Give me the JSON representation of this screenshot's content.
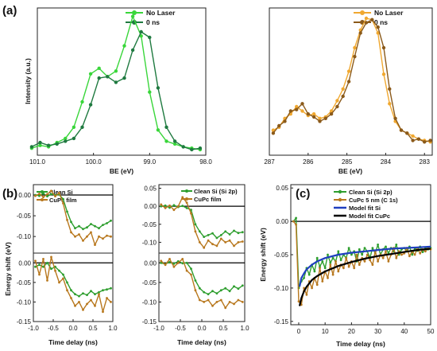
{
  "panel_labels": {
    "a": "(a)",
    "b": "(b)",
    "c": "(c)"
  },
  "colors": {
    "no_laser_si": "#39d63a",
    "zero_ns_si": "#1f7a40",
    "no_laser_c": "#f0a830",
    "zero_ns_c": "#8b5a1a",
    "clean_si": "#2e9e2e",
    "cupc": "#b8781e",
    "fit_si": "#1f3fbf",
    "fit_cupc": "#000000"
  },
  "chart_data": [
    {
      "id": "a-left",
      "type": "line",
      "xlabel": "BE (eV)",
      "ylabel": "Intensity (a.u.)",
      "xlim": [
        101.0,
        98.0
      ],
      "x_reversed": true,
      "xticks": [
        "101.0",
        "100.0",
        "99.0",
        "98.0"
      ],
      "series": [
        {
          "name": "No Laser",
          "x": [
            101.1,
            100.95,
            100.8,
            100.65,
            100.5,
            100.35,
            100.2,
            100.05,
            99.9,
            99.75,
            99.6,
            99.45,
            99.3,
            99.15,
            99.0,
            98.85,
            98.7,
            98.55,
            98.4,
            98.25,
            98.1
          ],
          "y": [
            0.05,
            0.07,
            0.06,
            0.09,
            0.12,
            0.2,
            0.38,
            0.58,
            0.62,
            0.56,
            0.6,
            0.78,
            0.99,
            0.85,
            0.45,
            0.18,
            0.1,
            0.08,
            0.06,
            0.05,
            0.04
          ]
        },
        {
          "name": "0 ns",
          "x": [
            101.1,
            100.95,
            100.8,
            100.65,
            100.5,
            100.35,
            100.2,
            100.05,
            99.9,
            99.75,
            99.6,
            99.45,
            99.3,
            99.15,
            99.0,
            98.85,
            98.7,
            98.55,
            98.4,
            98.25,
            98.1
          ],
          "y": [
            0.06,
            0.09,
            0.07,
            0.08,
            0.1,
            0.12,
            0.2,
            0.36,
            0.55,
            0.56,
            0.52,
            0.55,
            0.75,
            0.88,
            0.84,
            0.48,
            0.2,
            0.1,
            0.06,
            0.04,
            0.05
          ]
        }
      ]
    },
    {
      "id": "a-right",
      "type": "line",
      "xlabel": "BE (eV)",
      "ylabel": "",
      "xlim": [
        287,
        282.8
      ],
      "x_reversed": true,
      "xticks": [
        "287",
        "286",
        "285",
        "284",
        "283"
      ],
      "series": [
        {
          "name": "No Laser",
          "x": [
            286.9,
            286.75,
            286.6,
            286.45,
            286.3,
            286.15,
            286.0,
            285.85,
            285.7,
            285.55,
            285.4,
            285.25,
            285.1,
            284.95,
            284.8,
            284.65,
            284.5,
            284.35,
            284.2,
            284.05,
            283.9,
            283.75,
            283.6,
            283.45,
            283.3,
            283.15,
            283.0,
            282.85
          ],
          "y": [
            0.22,
            0.24,
            0.3,
            0.33,
            0.38,
            0.35,
            0.32,
            0.33,
            0.3,
            0.31,
            0.35,
            0.42,
            0.5,
            0.62,
            0.78,
            0.9,
            0.98,
            0.97,
            0.88,
            0.6,
            0.4,
            0.28,
            0.22,
            0.2,
            0.18,
            0.16,
            0.15,
            0.14
          ]
        },
        {
          "name": "0 ns",
          "x": [
            286.9,
            286.75,
            286.6,
            286.45,
            286.3,
            286.15,
            286.0,
            285.85,
            285.7,
            285.55,
            285.4,
            285.25,
            285.1,
            284.95,
            284.8,
            284.65,
            284.5,
            284.35,
            284.2,
            284.05,
            283.9,
            283.75,
            283.6,
            283.45,
            283.3,
            283.15,
            283.0,
            282.85
          ],
          "y": [
            0.2,
            0.25,
            0.28,
            0.35,
            0.36,
            0.4,
            0.33,
            0.31,
            0.28,
            0.3,
            0.33,
            0.38,
            0.45,
            0.55,
            0.72,
            0.88,
            0.95,
            0.97,
            0.92,
            0.78,
            0.5,
            0.3,
            0.22,
            0.2,
            0.15,
            0.16,
            0.14,
            0.15
          ]
        }
      ]
    },
    {
      "id": "b-tl",
      "type": "line",
      "xlim": [
        -1.0,
        1.0
      ],
      "ylim": [
        -0.15,
        0.02
      ],
      "yticks": [
        "0.00",
        "-0.05",
        "-0.10"
      ],
      "series": [
        {
          "name": "Clean Si",
          "x": [
            -0.95,
            -0.85,
            -0.75,
            -0.65,
            -0.55,
            -0.45,
            -0.35,
            -0.25,
            -0.15,
            -0.05,
            0.05,
            0.15,
            0.25,
            0.35,
            0.45,
            0.55,
            0.65,
            0.75,
            0.85,
            0.95
          ],
          "y": [
            0.0,
            -0.002,
            0.004,
            -0.003,
            0.002,
            0.0,
            0.001,
            -0.01,
            -0.04,
            -0.065,
            -0.08,
            -0.075,
            -0.082,
            -0.078,
            -0.07,
            -0.075,
            -0.08,
            -0.072,
            -0.068,
            -0.062
          ]
        },
        {
          "name": "CuPc film",
          "x": [
            -0.95,
            -0.85,
            -0.75,
            -0.65,
            -0.55,
            -0.45,
            -0.35,
            -0.25,
            -0.15,
            -0.05,
            0.05,
            0.15,
            0.25,
            0.35,
            0.45,
            0.55,
            0.65,
            0.75,
            0.85,
            0.95
          ],
          "y": [
            -0.002,
            0.003,
            -0.005,
            0.002,
            0.01,
            -0.003,
            0.005,
            -0.02,
            -0.06,
            -0.09,
            -0.1,
            -0.095,
            -0.11,
            -0.1,
            -0.09,
            -0.12,
            -0.1,
            -0.105,
            -0.098,
            -0.1
          ]
        }
      ]
    },
    {
      "id": "b-bl",
      "type": "line",
      "xlim": [
        -1.0,
        1.0
      ],
      "ylim": [
        -0.15,
        0.02
      ],
      "xlabel": "Time delay (ns)",
      "ylabel": "Energy shift (eV)",
      "xticks": [
        "-1.0",
        "-0.5",
        "0.0",
        "0.5",
        "1.0"
      ],
      "yticks": [
        "0.00",
        "-0.05",
        "-0.10",
        "-0.15"
      ],
      "series": [
        {
          "name": "Clean Si",
          "x": [
            -0.95,
            -0.85,
            -0.75,
            -0.65,
            -0.55,
            -0.45,
            -0.35,
            -0.25,
            -0.15,
            -0.05,
            0.05,
            0.15,
            0.25,
            0.35,
            0.45,
            0.55,
            0.65,
            0.75,
            0.85,
            0.95
          ],
          "y": [
            -0.01,
            -0.005,
            -0.01,
            0.0,
            -0.015,
            -0.01,
            -0.02,
            -0.03,
            -0.05,
            -0.07,
            -0.08,
            -0.085,
            -0.078,
            -0.082,
            -0.072,
            -0.08,
            -0.075,
            -0.07,
            -0.068,
            -0.065
          ]
        },
        {
          "name": "CuPc film",
          "x": [
            -0.95,
            -0.85,
            -0.75,
            -0.65,
            -0.55,
            -0.45,
            -0.35,
            -0.25,
            -0.15,
            -0.05,
            0.05,
            0.15,
            0.25,
            0.35,
            0.45,
            0.55,
            0.65,
            0.75,
            0.85,
            0.95
          ],
          "y": [
            0.005,
            -0.03,
            0.01,
            -0.045,
            0.015,
            -0.02,
            -0.05,
            -0.04,
            -0.07,
            -0.09,
            -0.11,
            -0.1,
            -0.12,
            -0.105,
            -0.095,
            -0.11,
            -0.08,
            -0.125,
            -0.09,
            -0.1
          ]
        }
      ]
    },
    {
      "id": "b-tr",
      "type": "line",
      "xlim": [
        -1.0,
        1.0
      ],
      "ylim": [
        -0.15,
        0.02
      ],
      "yticks": [
        "0.05",
        "0.00",
        "-0.05",
        "-0.10"
      ],
      "series": [
        {
          "name": "Clean Si (Si 2p)",
          "x": [
            -0.95,
            -0.85,
            -0.75,
            -0.65,
            -0.55,
            -0.45,
            -0.35,
            -0.25,
            -0.15,
            -0.05,
            0.05,
            0.15,
            0.25,
            0.35,
            0.45,
            0.55,
            0.65,
            0.75,
            0.85,
            0.95
          ],
          "y": [
            0.0,
            0.002,
            -0.004,
            0.003,
            -0.002,
            0.001,
            -0.005,
            -0.01,
            -0.05,
            -0.07,
            -0.085,
            -0.08,
            -0.075,
            -0.088,
            -0.08,
            -0.07,
            -0.078,
            -0.068,
            -0.074,
            -0.072
          ]
        },
        {
          "name": "CuPc film",
          "x": [
            -0.95,
            -0.85,
            -0.75,
            -0.65,
            -0.55,
            -0.45,
            -0.35,
            -0.25,
            -0.15,
            -0.05,
            0.05,
            0.15,
            0.25,
            0.35,
            0.45,
            0.55,
            0.65,
            0.75,
            0.85,
            0.95
          ],
          "y": [
            0.005,
            -0.005,
            0.002,
            -0.01,
            0.0,
            0.025,
            0.01,
            -0.02,
            -0.07,
            -0.1,
            -0.115,
            -0.095,
            -0.105,
            -0.11,
            -0.09,
            -0.1,
            -0.095,
            -0.11,
            -0.1,
            -0.098
          ]
        }
      ]
    },
    {
      "id": "b-br",
      "type": "line",
      "xlim": [
        -1.0,
        1.0
      ],
      "ylim": [
        -0.15,
        0.02
      ],
      "xlabel": "Time delay (ns)",
      "xticks": [
        "-1.0",
        "-0.5",
        "0.0",
        "0.5",
        "1.0"
      ],
      "yticks": [
        "0.00",
        "-0.05",
        "-0.10",
        "-0.15"
      ],
      "series": [
        {
          "name": "Clean Si",
          "x": [
            -0.95,
            -0.85,
            -0.75,
            -0.65,
            -0.55,
            -0.45,
            -0.35,
            -0.25,
            -0.15,
            -0.05,
            0.05,
            0.15,
            0.25,
            0.35,
            0.45,
            0.55,
            0.65,
            0.75,
            0.85,
            0.95
          ],
          "y": [
            0.0,
            -0.003,
            0.002,
            -0.002,
            0.004,
            -0.001,
            0.0,
            -0.015,
            -0.045,
            -0.065,
            -0.075,
            -0.08,
            -0.072,
            -0.078,
            -0.07,
            -0.065,
            -0.072,
            -0.06,
            -0.066,
            -0.058
          ]
        },
        {
          "name": "CuPc film",
          "x": [
            -0.95,
            -0.85,
            -0.75,
            -0.65,
            -0.55,
            -0.45,
            -0.35,
            -0.25,
            -0.15,
            -0.05,
            0.05,
            0.15,
            0.25,
            0.35,
            0.45,
            0.55,
            0.65,
            0.75,
            0.85,
            0.95
          ],
          "y": [
            0.005,
            -0.005,
            0.01,
            -0.01,
            0.0,
            0.01,
            -0.02,
            -0.03,
            -0.07,
            -0.095,
            -0.1,
            -0.095,
            -0.11,
            -0.1,
            -0.095,
            -0.115,
            -0.1,
            -0.105,
            -0.095,
            -0.1
          ]
        }
      ]
    },
    {
      "id": "c",
      "type": "line",
      "xlabel": "Time delay (ns)",
      "ylabel": "Energy shift (eV)",
      "xlim": [
        -3,
        50
      ],
      "ylim": [
        -0.15,
        0.05
      ],
      "xticks": [
        "0",
        "10",
        "20",
        "30",
        "40",
        "50"
      ],
      "yticks": [
        "0.05",
        "0.00",
        "-0.05",
        "-0.10",
        "-0.15"
      ],
      "series": [
        {
          "name": "Clean Si (Si 2p)",
          "x": [
            -2,
            -1,
            0,
            1,
            2,
            3,
            4,
            5,
            6,
            7,
            8,
            9,
            10,
            11,
            12,
            13,
            14,
            15,
            16,
            17,
            18,
            19,
            20,
            21,
            22,
            23,
            24,
            25,
            26,
            27,
            28,
            29,
            30,
            31,
            32,
            33,
            34,
            35,
            36,
            37,
            38,
            39,
            40,
            41,
            42,
            43,
            44,
            45,
            46,
            47,
            48,
            49,
            50
          ],
          "y": [
            0.0,
            0.005,
            -0.1,
            -0.09,
            -0.085,
            -0.07,
            -0.08,
            -0.065,
            -0.075,
            -0.055,
            -0.068,
            -0.06,
            -0.07,
            -0.05,
            -0.062,
            -0.055,
            -0.06,
            -0.045,
            -0.058,
            -0.05,
            -0.055,
            -0.04,
            -0.05,
            -0.045,
            -0.06,
            -0.042,
            -0.05,
            -0.04,
            -0.045,
            -0.055,
            -0.04,
            -0.048,
            -0.035,
            -0.05,
            -0.042,
            -0.038,
            -0.048,
            -0.04,
            -0.045,
            -0.035,
            -0.05,
            -0.042,
            -0.04,
            -0.045,
            -0.038,
            -0.05,
            -0.04,
            -0.044,
            -0.038,
            -0.046,
            -0.04,
            -0.042,
            -0.04
          ]
        },
        {
          "name": "CuPc 5 nm (C 1s)",
          "x": [
            -2,
            -1,
            0,
            1,
            2,
            3,
            4,
            5,
            6,
            7,
            8,
            9,
            10,
            11,
            12,
            13,
            14,
            15,
            16,
            17,
            18,
            19,
            20,
            21,
            22,
            23,
            24,
            25,
            26,
            27,
            28,
            29,
            30,
            31,
            32,
            33,
            34,
            35,
            36,
            37,
            38,
            39,
            40,
            41,
            42,
            43,
            44,
            45,
            46,
            47,
            48,
            49,
            50
          ],
          "y": [
            0.0,
            -0.005,
            -0.12,
            -0.125,
            -0.1,
            -0.11,
            -0.09,
            -0.1,
            -0.085,
            -0.095,
            -0.07,
            -0.09,
            -0.075,
            -0.085,
            -0.065,
            -0.08,
            -0.06,
            -0.075,
            -0.065,
            -0.07,
            -0.055,
            -0.068,
            -0.06,
            -0.07,
            -0.05,
            -0.065,
            -0.055,
            -0.06,
            -0.05,
            -0.058,
            -0.065,
            -0.045,
            -0.06,
            -0.05,
            -0.055,
            -0.045,
            -0.06,
            -0.05,
            -0.04,
            -0.055,
            -0.045,
            -0.05,
            -0.048,
            -0.04,
            -0.052,
            -0.045,
            -0.05,
            -0.04,
            -0.048,
            -0.042,
            -0.045,
            -0.04,
            -0.042
          ]
        },
        {
          "name": "Model fit Si",
          "x": [
            0.3,
            1,
            2,
            3,
            5,
            7,
            10,
            15,
            20,
            25,
            30,
            35,
            40,
            45,
            50
          ],
          "y": [
            -0.098,
            -0.085,
            -0.078,
            -0.072,
            -0.065,
            -0.06,
            -0.055,
            -0.05,
            -0.047,
            -0.045,
            -0.043,
            -0.041,
            -0.04,
            -0.039,
            -0.038
          ]
        },
        {
          "name": "Model fit CuPc",
          "x": [
            0.3,
            1,
            2,
            3,
            5,
            7,
            10,
            15,
            20,
            25,
            30,
            35,
            40,
            45,
            50
          ],
          "y": [
            -0.127,
            -0.115,
            -0.105,
            -0.098,
            -0.088,
            -0.082,
            -0.075,
            -0.067,
            -0.061,
            -0.056,
            -0.052,
            -0.049,
            -0.046,
            -0.043,
            -0.041
          ]
        }
      ]
    }
  ]
}
